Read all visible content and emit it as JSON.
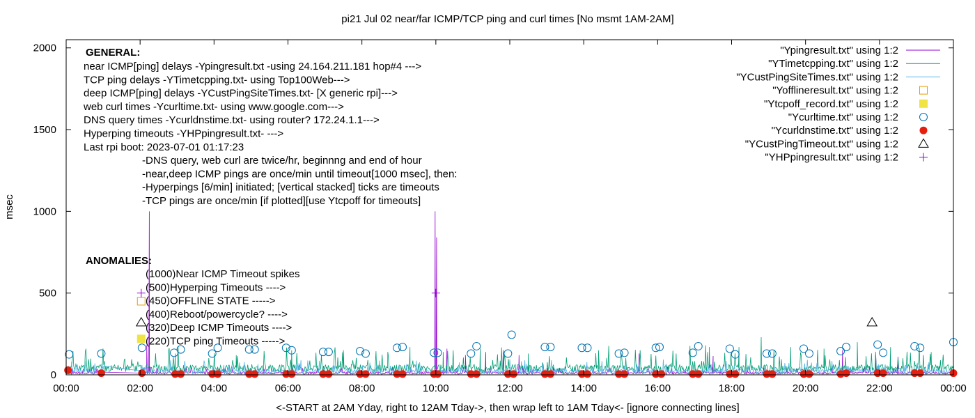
{
  "chart_data": {
    "type": "line",
    "title": "pi21 Jul 02  near/far ICMP/TCP ping and curl times [No msmt 1AM-2AM]",
    "xlabel": "<-START at 2AM Yday, right to 12AM Tday->, then wrap left to 1AM Tday<- [ignore connecting lines]",
    "ylabel": "msec",
    "xlim": [
      0,
      24
    ],
    "ylim": [
      0,
      2050
    ],
    "x_ticks": [
      {
        "value": 0,
        "label": "00:00"
      },
      {
        "value": 2,
        "label": "02:00"
      },
      {
        "value": 4,
        "label": "04:00"
      },
      {
        "value": 6,
        "label": "06:00"
      },
      {
        "value": 8,
        "label": "08:00"
      },
      {
        "value": 10,
        "label": "10:00"
      },
      {
        "value": 12,
        "label": "12:00"
      },
      {
        "value": 14,
        "label": "14:00"
      },
      {
        "value": 16,
        "label": "16:00"
      },
      {
        "value": 18,
        "label": "18:00"
      },
      {
        "value": 20,
        "label": "20:00"
      },
      {
        "value": 22,
        "label": "22:00"
      },
      {
        "value": 24,
        "label": "00:00"
      }
    ],
    "y_ticks": [
      {
        "value": 0,
        "label": "0"
      },
      {
        "value": 500,
        "label": "500"
      },
      {
        "value": 1000,
        "label": "1000"
      },
      {
        "value": 1500,
        "label": "1500"
      },
      {
        "value": 2000,
        "label": "2000"
      }
    ],
    "grid": false,
    "legend_position": "top-right",
    "colors": {
      "ping": "#9400d3",
      "tcp": "#009e73",
      "cust": "#56b4e9",
      "offline": "#e69f00",
      "tcpoff": "#f0e442",
      "curl": "#0072b2",
      "dns": "#e51e10",
      "custtimeout": "#000000",
      "hp": "#9400d3"
    },
    "series": [
      {
        "key": "ping",
        "name": "\"Ypingresult.txt\" using 1:2",
        "style": "line",
        "baseline": 10,
        "spikes": [
          [
            2.25,
            1000
          ],
          [
            9.98,
            1000
          ],
          [
            10.02,
            840
          ],
          [
            2.18,
            180
          ],
          [
            10.3,
            160
          ],
          [
            10.8,
            120
          ],
          [
            11.35,
            140
          ],
          [
            11.82,
            150
          ],
          [
            12.25,
            120
          ],
          [
            15.5,
            130
          ],
          [
            17.5,
            115
          ],
          [
            21.0,
            150
          ],
          [
            21.9,
            120
          ],
          [
            22.5,
            110
          ]
        ]
      },
      {
        "key": "tcp",
        "name": "\"YTimetcpping.txt\" using 1:2",
        "style": "line",
        "baseline": 35,
        "spikes": [
          [
            2.95,
            130
          ],
          [
            4.6,
            120
          ],
          [
            6.1,
            150
          ],
          [
            7.5,
            150
          ],
          [
            8.7,
            140
          ],
          [
            9.3,
            170
          ],
          [
            10.2,
            140
          ],
          [
            11.2,
            160
          ],
          [
            12.5,
            130
          ],
          [
            14.4,
            150
          ],
          [
            16.5,
            130
          ],
          [
            17.4,
            170
          ],
          [
            18.2,
            170
          ],
          [
            18.8,
            230
          ],
          [
            19.6,
            170
          ],
          [
            20.5,
            160
          ],
          [
            21.4,
            200
          ],
          [
            22.3,
            170
          ],
          [
            23.4,
            140
          ]
        ]
      },
      {
        "key": "cust",
        "name": "\"YCustPingSiteTimes.txt\" using 1:2",
        "style": "line",
        "baseline": 20,
        "spikes": []
      },
      {
        "key": "offline",
        "name": "\"Yofflineresult.txt\" using 1:2",
        "style": "point",
        "points": [
          [
            2.03,
            450
          ]
        ]
      },
      {
        "key": "tcpoff",
        "name": "\"Ytcpoff_record.txt\" using 1:2",
        "style": "point",
        "points": [
          [
            2.03,
            220
          ]
        ]
      },
      {
        "key": "curl",
        "name": "\"Ycurltime.txt\" using 1:2",
        "style": "point",
        "points": [
          [
            0.08,
            125
          ],
          [
            0.95,
            130
          ],
          [
            2.05,
            165
          ],
          [
            2.92,
            135
          ],
          [
            3.1,
            155
          ],
          [
            3.95,
            130
          ],
          [
            4.1,
            165
          ],
          [
            4.95,
            155
          ],
          [
            5.1,
            155
          ],
          [
            5.95,
            165
          ],
          [
            6.1,
            150
          ],
          [
            6.95,
            140
          ],
          [
            7.1,
            140
          ],
          [
            7.95,
            145
          ],
          [
            8.1,
            130
          ],
          [
            8.95,
            165
          ],
          [
            9.1,
            170
          ],
          [
            9.95,
            135
          ],
          [
            10.05,
            135
          ],
          [
            10.95,
            130
          ],
          [
            11.1,
            175
          ],
          [
            11.95,
            130
          ],
          [
            12.05,
            245
          ],
          [
            12.95,
            170
          ],
          [
            13.1,
            170
          ],
          [
            13.95,
            165
          ],
          [
            14.1,
            165
          ],
          [
            14.95,
            130
          ],
          [
            15.1,
            135
          ],
          [
            15.95,
            165
          ],
          [
            16.05,
            170
          ],
          [
            16.95,
            135
          ],
          [
            17.1,
            175
          ],
          [
            17.95,
            160
          ],
          [
            18.1,
            125
          ],
          [
            18.95,
            130
          ],
          [
            19.1,
            130
          ],
          [
            19.95,
            160
          ],
          [
            20.1,
            130
          ],
          [
            20.95,
            145
          ],
          [
            21.1,
            170
          ],
          [
            21.95,
            185
          ],
          [
            22.1,
            135
          ],
          [
            22.95,
            175
          ],
          [
            23.1,
            165
          ],
          [
            24.0,
            200
          ]
        ]
      },
      {
        "key": "dns",
        "name": "\"Ycurldnstime.txt\" using 1:2",
        "style": "point",
        "points": [
          [
            0.05,
            28
          ],
          [
            0.95,
            10
          ],
          [
            2.05,
            10
          ],
          [
            2.95,
            5
          ],
          [
            3.1,
            5
          ],
          [
            3.95,
            5
          ],
          [
            4.1,
            5
          ],
          [
            4.95,
            5
          ],
          [
            5.1,
            5
          ],
          [
            5.95,
            5
          ],
          [
            6.1,
            5
          ],
          [
            6.95,
            5
          ],
          [
            7.1,
            5
          ],
          [
            7.95,
            5
          ],
          [
            8.1,
            5
          ],
          [
            8.95,
            5
          ],
          [
            9.1,
            5
          ],
          [
            9.95,
            5
          ],
          [
            10.05,
            5
          ],
          [
            10.95,
            5
          ],
          [
            11.1,
            5
          ],
          [
            11.95,
            5
          ],
          [
            12.1,
            5
          ],
          [
            12.95,
            5
          ],
          [
            13.1,
            5
          ],
          [
            13.95,
            5
          ],
          [
            14.1,
            5
          ],
          [
            14.95,
            5
          ],
          [
            15.1,
            5
          ],
          [
            15.95,
            5
          ],
          [
            16.1,
            5
          ],
          [
            16.95,
            5
          ],
          [
            17.1,
            5
          ],
          [
            17.95,
            5
          ],
          [
            18.1,
            5
          ],
          [
            18.95,
            5
          ],
          [
            19.1,
            5
          ],
          [
            19.95,
            5
          ],
          [
            20.1,
            5
          ],
          [
            20.95,
            5
          ],
          [
            21.1,
            10
          ],
          [
            21.95,
            10
          ],
          [
            22.1,
            10
          ],
          [
            22.95,
            10
          ],
          [
            23.1,
            10
          ],
          [
            24.0,
            10
          ]
        ]
      },
      {
        "key": "custtimeout",
        "name": "\"YCustPingTimeout.txt\" using 1:2",
        "style": "point",
        "points": [
          [
            2.03,
            320
          ],
          [
            21.8,
            320
          ]
        ]
      },
      {
        "key": "hp",
        "name": "\"YHPpingresult.txt\" using 1:2",
        "style": "point",
        "points": [
          [
            2.03,
            500
          ],
          [
            10.0,
            500
          ]
        ]
      }
    ],
    "annotations": {
      "general_heading": "GENERAL:",
      "general_lines": [
        "near ICMP[ping] delays -Ypingresult.txt -using 24.164.211.181 hop#4 --->",
        "TCP ping delays -YTimetcpping.txt- using Top100Web--->",
        "deep ICMP[ping] delays -YCustPingSiteTimes.txt- [X generic rpi]--->",
        "web curl times -Ycurltime.txt- using www.google.com--->",
        "DNS query times -Ycurldnstime.txt- using router? 172.24.1.1--->",
        "Hyperping timeouts -YHPpingresult.txt- --->",
        "Last rpi boot: 2023-07-01 01:17:23"
      ],
      "notes": [
        "-DNS query, web curl are twice/hr, beginnng and end of hour",
        "-near,deep ICMP pings are once/min until timeout[1000 msec], then:",
        "  -Hyperpings [6/min] initiated; [vertical stacked] ticks are timeouts",
        "-TCP pings are once/min [if plotted][use Ytcpoff for timeouts]"
      ],
      "anomalies_heading": "ANOMALIES:",
      "anomalies_lines": [
        "(1000)Near ICMP Timeout spikes",
        "(500)Hyperping Timeouts ---->",
        "(450)OFFLINE STATE ----->",
        "(400)Reboot/powercycle? ---->",
        "(320)Deep ICMP Timeouts ---->",
        "(220)TCP ping Timeouts ----->"
      ]
    }
  }
}
